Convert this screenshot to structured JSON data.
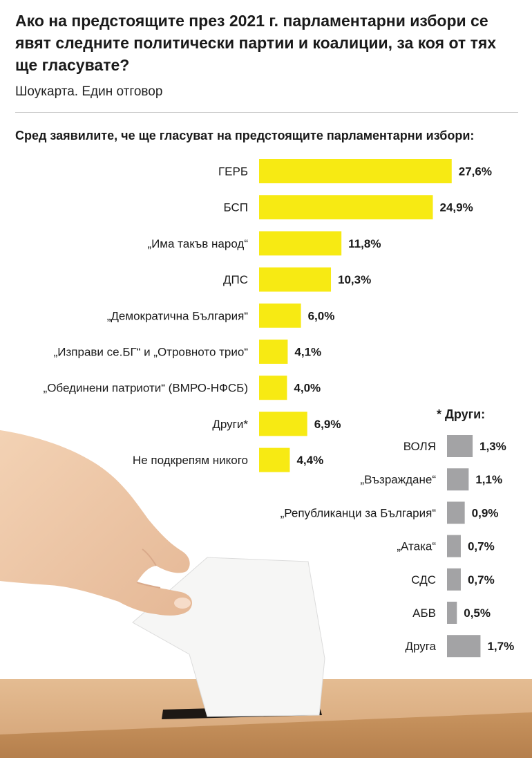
{
  "title": "Ако на предстоящите през 2021 г. парламентарни избори се явят следните политически партии и коалиции, за коя от тях ще гласувате?",
  "subtitle": "Шоукарта. Един отговор",
  "subheading": "Сред заявилите, че ще гласуват на предстоящите парламентарни избори:",
  "others_title": "* Други:",
  "colors": {
    "main_bar": "#f7ea13",
    "others_bar": "#a3a3a5",
    "box": "#d6a679",
    "skin": "#f0c9a8"
  },
  "chart_data": [
    {
      "type": "bar",
      "orientation": "horizontal",
      "categories": [
        "ГЕРБ",
        "БСП",
        "„Има такъв народ“",
        "ДПС",
        "„Демократична България“",
        "„Изправи се.БГ“ и „Отровното трио“",
        "„Обединени патриоти“ (ВМРО-НФСБ)",
        "Други*",
        "Не подкрепям никого"
      ],
      "values": [
        27.6,
        24.9,
        11.8,
        10.3,
        6.0,
        4.1,
        4.0,
        6.9,
        4.4
      ],
      "value_labels": [
        "27,6%",
        "24,9%",
        "11,8%",
        "10,3%",
        "6,0%",
        "4,1%",
        "4,0%",
        "6,9%",
        "4,4%"
      ],
      "color": "#f7ea13"
    },
    {
      "type": "bar",
      "orientation": "horizontal",
      "title": "* Други:",
      "categories": [
        "ВОЛЯ",
        "„Възраждане“",
        "„Републиканци за България“",
        "„Атака“",
        "СДС",
        "АБВ",
        "Друга"
      ],
      "values": [
        1.3,
        1.1,
        0.9,
        0.7,
        0.7,
        0.5,
        1.7
      ],
      "value_labels": [
        "1,3%",
        "1,1%",
        "0,9%",
        "0,7%",
        "0,7%",
        "0,5%",
        "1,7%"
      ],
      "color": "#a3a3a5"
    }
  ]
}
